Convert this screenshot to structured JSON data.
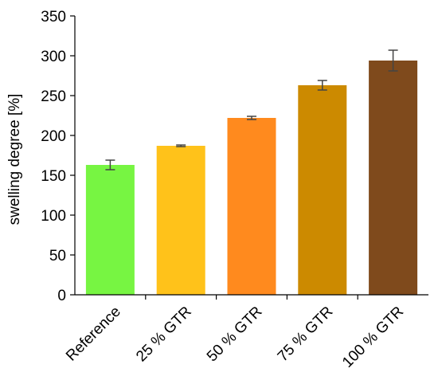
{
  "chart_data": {
    "type": "bar",
    "title": "",
    "xlabel": "",
    "ylabel": "swelling degree [%]",
    "ylim": [
      0,
      350
    ],
    "yticks": [
      0,
      50,
      100,
      150,
      200,
      250,
      300,
      350
    ],
    "grid": false,
    "categories": [
      "Reference",
      "25 % GTR",
      "50 % GTR",
      "75 % GTR",
      "100 % GTR"
    ],
    "values": [
      163,
      187,
      222,
      263,
      294
    ],
    "errors": [
      6,
      1,
      2,
      6,
      13
    ],
    "colors": [
      "#77f542",
      "#ffc21a",
      "#ff8a1e",
      "#cc8a00",
      "#7f4a1c"
    ]
  }
}
